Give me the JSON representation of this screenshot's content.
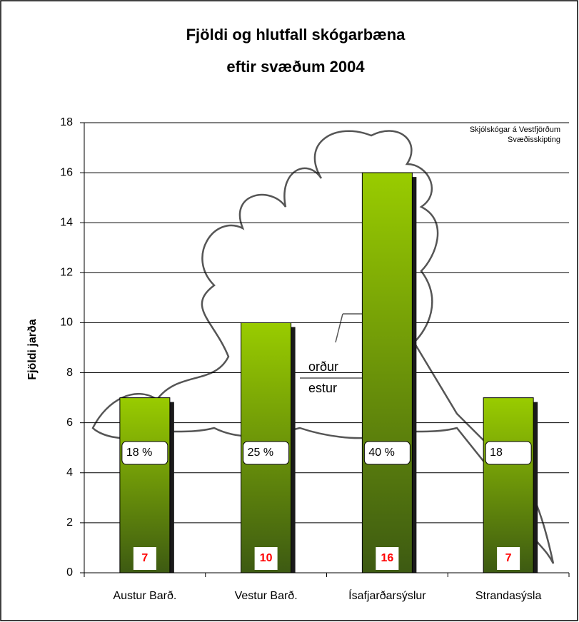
{
  "chart_data": {
    "type": "bar",
    "title": [
      "Fjöldi og hlutfall skógarbæna",
      "eftir svæðum 2004"
    ],
    "ylabel": "Fjöldi jarða",
    "categories": [
      "Austur Barð.",
      "Vestur Barð.",
      "Ísafjarðarsýslur",
      "Strandasýsla"
    ],
    "values": [
      7,
      10,
      16,
      7
    ],
    "percent_labels": [
      "18 %",
      "25 %",
      "40 %",
      "18"
    ],
    "map_caption": [
      "Skjólskógar á Vestfjörðum",
      "Svæðisskipting"
    ],
    "map_labels": [
      "orður",
      "estur"
    ],
    "color": [
      "#99cc00",
      "#3d5a12"
    ],
    "value_label_color": "#ff0000",
    "ylim": [
      0,
      18
    ],
    "yticks": [
      0,
      2,
      4,
      6,
      8,
      10,
      12,
      14,
      16,
      18
    ],
    "grid": true
  }
}
